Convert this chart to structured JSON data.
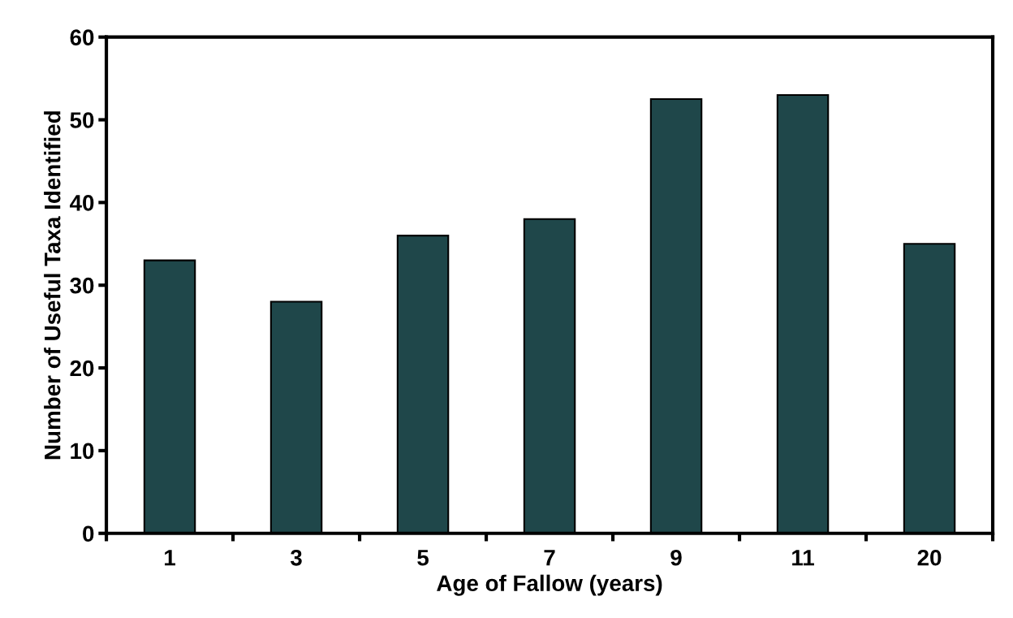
{
  "chart_data": {
    "type": "bar",
    "xlabel": "Age of Fallow (years)",
    "ylabel": "Number of Useful Taxa Identified",
    "categories": [
      "1",
      "3",
      "5",
      "7",
      "9",
      "11",
      "20"
    ],
    "values": [
      33,
      28,
      36,
      38,
      52.5,
      53,
      35
    ],
    "color": "#1f474a",
    "ylim": [
      0,
      60
    ],
    "yticks": [
      0,
      10,
      20,
      30,
      40,
      50,
      60
    ],
    "grid": false
  }
}
